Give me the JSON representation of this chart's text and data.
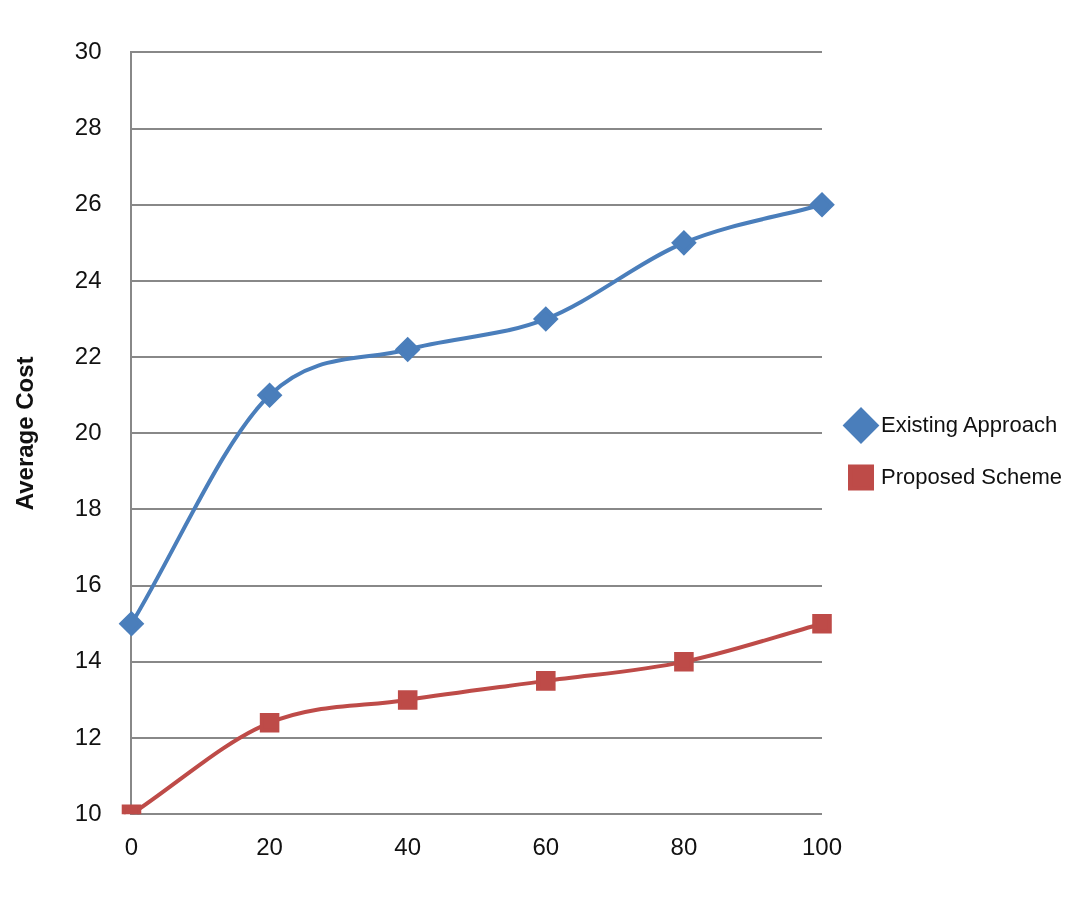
{
  "chart_data": {
    "type": "line",
    "ylabel": "Average Cost",
    "categories": [
      "0",
      "20",
      "40",
      "60",
      "80",
      "100"
    ],
    "series": [
      {
        "name": "Existing Approach",
        "color": "#4a7ebb",
        "marker": "diamond",
        "values": [
          15,
          21,
          22.2,
          23,
          25,
          26
        ]
      },
      {
        "name": "Proposed Scheme",
        "color": "#be4b48",
        "marker": "square",
        "values": [
          10,
          12.4,
          13,
          13.5,
          14,
          15
        ]
      }
    ],
    "ylim": [
      10,
      30
    ],
    "yticks": [
      10,
      12,
      14,
      16,
      18,
      20,
      22,
      24,
      26,
      28,
      30
    ],
    "grid": "y",
    "legend": "right"
  }
}
